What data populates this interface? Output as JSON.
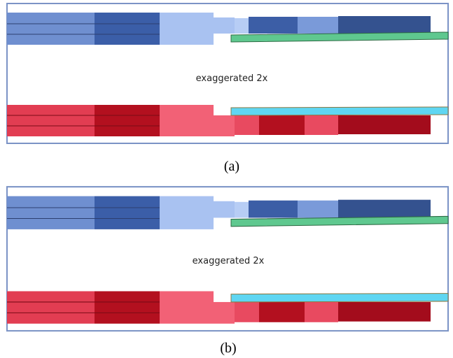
{
  "panels": [
    {
      "annotation": "exaggerated 2x",
      "label": "(a)"
    },
    {
      "annotation": "exaggerated 2x",
      "label": "(b)"
    }
  ]
}
